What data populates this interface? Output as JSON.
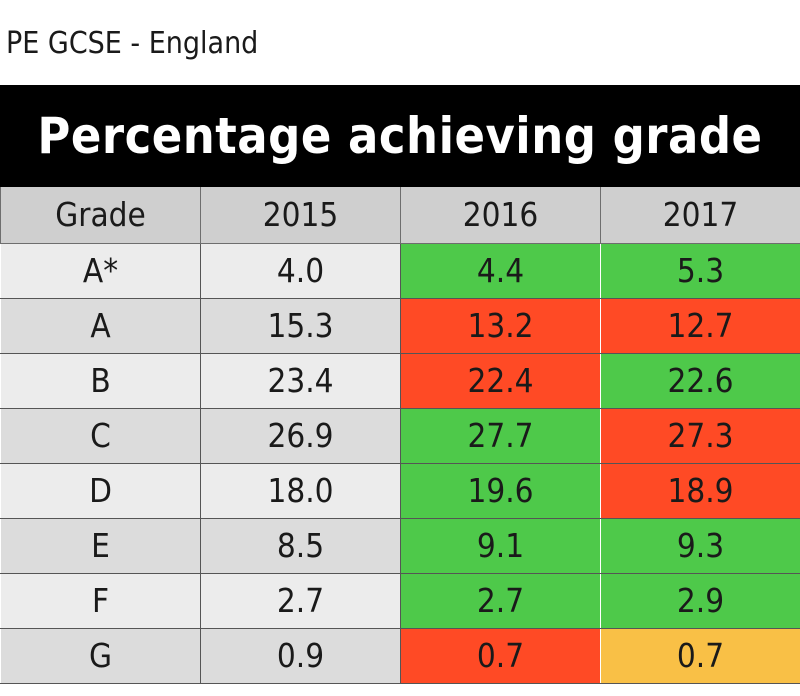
{
  "caption": "PE GCSE - England",
  "colors": {
    "increase": "#4ec94a",
    "decrease": "#ff4a25",
    "no_change_or_mixed": "#f9c046",
    "header_bg": "#cfcfcf",
    "title_bg": "#000000"
  },
  "chart_data": {
    "type": "table",
    "title": "Percentage achieving grade",
    "columns": [
      "Grade",
      "2015",
      "2016",
      "2017"
    ],
    "rows": [
      {
        "grade": "A*",
        "y2015": "4.0",
        "y2016": "4.4",
        "y2017": "5.3",
        "c2016": "green",
        "c2017": "green"
      },
      {
        "grade": "A",
        "y2015": "15.3",
        "y2016": "13.2",
        "y2017": "12.7",
        "c2016": "red",
        "c2017": "red"
      },
      {
        "grade": "B",
        "y2015": "23.4",
        "y2016": "22.4",
        "y2017": "22.6",
        "c2016": "red",
        "c2017": "green"
      },
      {
        "grade": "C",
        "y2015": "26.9",
        "y2016": "27.7",
        "y2017": "27.3",
        "c2016": "green",
        "c2017": "red"
      },
      {
        "grade": "D",
        "y2015": "18.0",
        "y2016": "19.6",
        "y2017": "18.9",
        "c2016": "green",
        "c2017": "red"
      },
      {
        "grade": "E",
        "y2015": "8.5",
        "y2016": "9.1",
        "y2017": "9.3",
        "c2016": "green",
        "c2017": "green"
      },
      {
        "grade": "F",
        "y2015": "2.7",
        "y2016": "2.7",
        "y2017": "2.9",
        "c2016": "green",
        "c2017": "green"
      },
      {
        "grade": "G",
        "y2015": "0.9",
        "y2016": "0.7",
        "y2017": "0.7",
        "c2016": "red",
        "c2017": "amber"
      }
    ]
  }
}
